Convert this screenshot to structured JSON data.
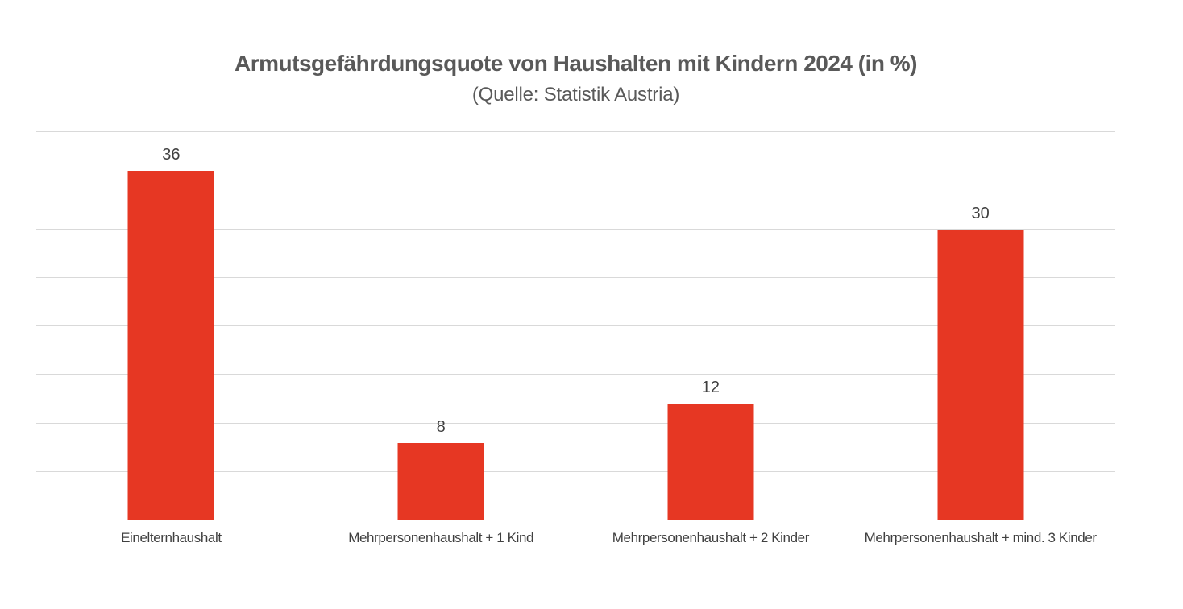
{
  "chart_data": {
    "type": "bar",
    "title": "Armutsgefährdungsquote von Haushalten mit Kindern 2024 (in %)",
    "subtitle": "(Quelle: Statistik Austria)",
    "categories": [
      "Einelternhaushalt",
      "Mehrpersonenhaushalt + 1 Kind",
      "Mehrpersonenhaushalt + 2 Kinder",
      "Mehrpersonenhaushalt + mind. 3 Kinder"
    ],
    "values": [
      36,
      8,
      12,
      30
    ],
    "data_labels": [
      "36",
      "8",
      "12",
      "30"
    ],
    "xlabel": "",
    "ylabel": "",
    "ylim": [
      0,
      40
    ],
    "gridline_step": 5,
    "grid": true,
    "legend": false,
    "y_tick_labels_visible": false,
    "bar_color": "#e63723",
    "gridline_color": "#d9d9d9",
    "title_color": "#595959",
    "label_color": "#404040",
    "background_color": "#ffffff"
  }
}
